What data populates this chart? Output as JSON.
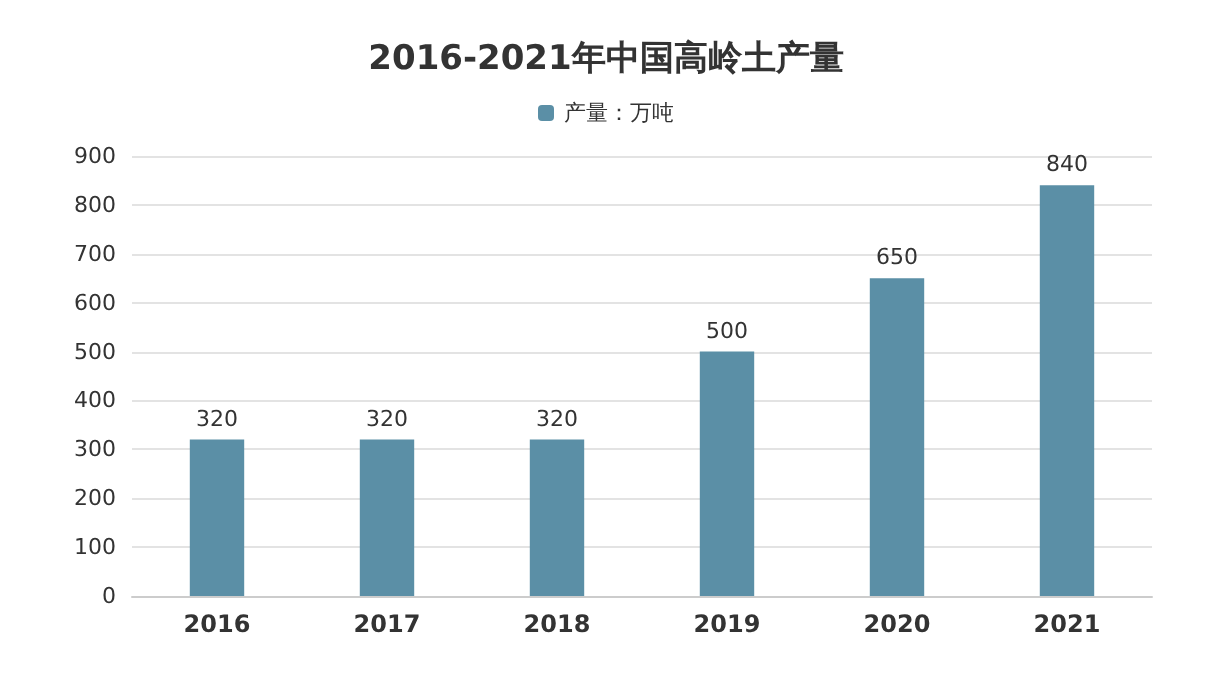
{
  "chart_data": {
    "type": "bar",
    "title": "2016-2021年中国高岭土产量",
    "categories": [
      "2016",
      "2017",
      "2018",
      "2019",
      "2020",
      "2021"
    ],
    "series": [
      {
        "name": "产量：万吨",
        "color": "#5b8fa6",
        "values": [
          320,
          320,
          320,
          500,
          650,
          840
        ]
      }
    ],
    "ylim": [
      0,
      900
    ],
    "yticks": [
      0,
      100,
      200,
      300,
      400,
      500,
      600,
      700,
      800,
      900
    ],
    "grid": "y",
    "legend": "top",
    "data_labels": true
  }
}
